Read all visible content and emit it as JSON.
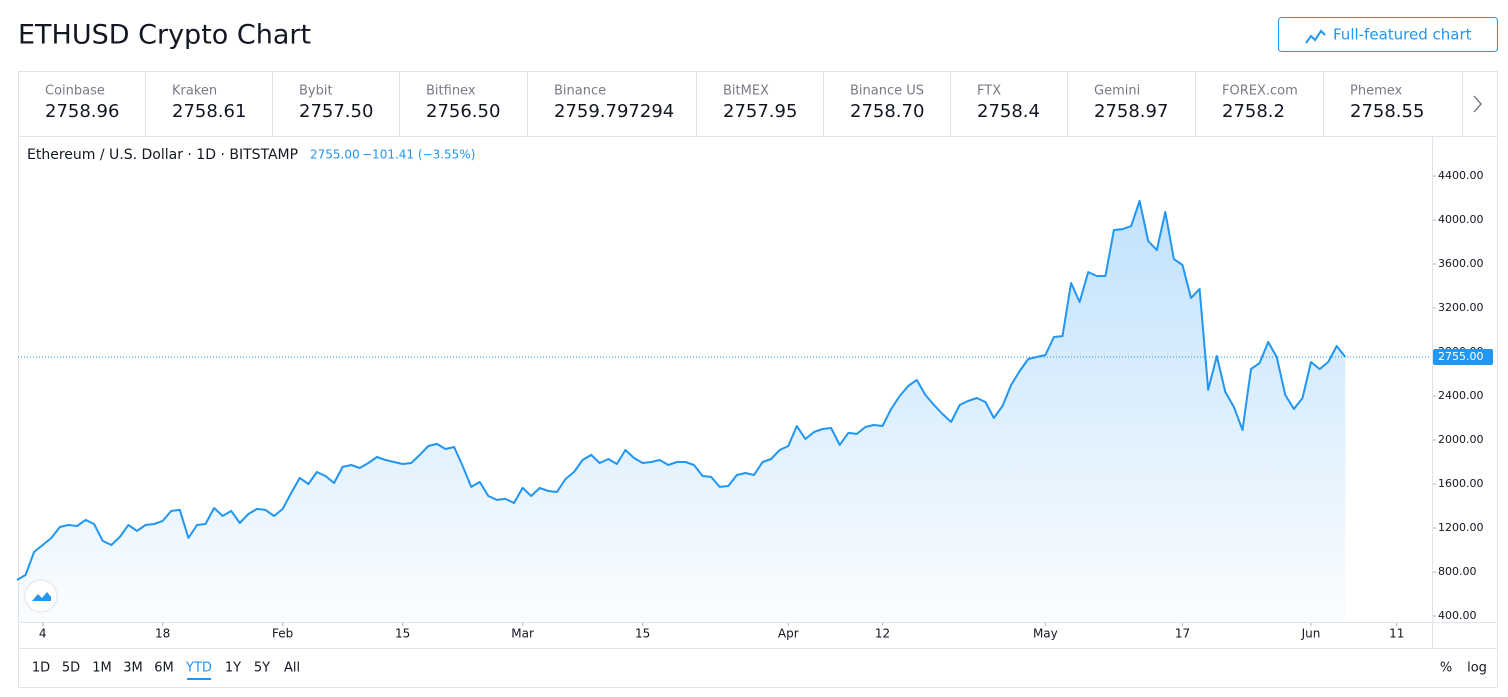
{
  "header": {
    "title": "ETHUSD Crypto Chart",
    "button": "Full-featured chart"
  },
  "exchanges": [
    {
      "name": "Coinbase",
      "price": "2758.96"
    },
    {
      "name": "Kraken",
      "price": "2758.61"
    },
    {
      "name": "Bybit",
      "price": "2757.50"
    },
    {
      "name": "Bitfinex",
      "price": "2756.50"
    },
    {
      "name": "Binance",
      "price": "2759.797294"
    },
    {
      "name": "BitMEX",
      "price": "2757.95"
    },
    {
      "name": "Binance US",
      "price": "2758.70"
    },
    {
      "name": "FTX",
      "price": "2758.4"
    },
    {
      "name": "Gemini",
      "price": "2758.97"
    },
    {
      "name": "FOREX.com",
      "price": "2758.2"
    },
    {
      "name": "Phemex",
      "price": "2758.55"
    }
  ],
  "chart_data": {
    "type": "area",
    "title": "Ethereum / U.S. Dollar · 1D · BITSTAMP",
    "last_price": "2755.00",
    "change": "−101.41 (−3.55%)",
    "color": "#2196f3",
    "values": [
      727,
      773,
      982,
      1045,
      1109,
      1209,
      1227,
      1218,
      1273,
      1236,
      1082,
      1045,
      1118,
      1227,
      1173,
      1227,
      1236,
      1264,
      1355,
      1364,
      1109,
      1227,
      1236,
      1382,
      1309,
      1355,
      1245,
      1327,
      1373,
      1364,
      1309,
      1373,
      1518,
      1655,
      1600,
      1709,
      1673,
      1609,
      1755,
      1773,
      1745,
      1791,
      1845,
      1818,
      1800,
      1782,
      1791,
      1864,
      1945,
      1964,
      1918,
      1936,
      1764,
      1573,
      1618,
      1491,
      1455,
      1464,
      1427,
      1564,
      1491,
      1564,
      1536,
      1527,
      1645,
      1709,
      1818,
      1864,
      1791,
      1827,
      1782,
      1909,
      1836,
      1791,
      1800,
      1818,
      1773,
      1800,
      1800,
      1773,
      1673,
      1664,
      1573,
      1582,
      1682,
      1700,
      1682,
      1800,
      1827,
      1909,
      1945,
      2127,
      2009,
      2073,
      2100,
      2109,
      1955,
      2064,
      2055,
      2118,
      2136,
      2127,
      2282,
      2400,
      2491,
      2545,
      2409,
      2318,
      2236,
      2164,
      2318,
      2355,
      2382,
      2345,
      2200,
      2309,
      2500,
      2627,
      2736,
      2755,
      2773,
      2936,
      2945,
      3427,
      3255,
      3527,
      3491,
      3491,
      3909,
      3918,
      3945,
      4173,
      3809,
      3727,
      4073,
      3645,
      3591,
      3291,
      3373,
      2455,
      2764,
      2436,
      2300,
      2091,
      2645,
      2700,
      2891,
      2755,
      2409,
      2282,
      2382,
      2709,
      2645,
      2709,
      2855,
      2755
    ],
    "last_value": {
      "value": 2755,
      "label": "2755.00"
    },
    "xlim": [
      0,
      165
    ],
    "xticks": [
      {
        "value": 3,
        "label": "4"
      },
      {
        "value": 17,
        "label": "18"
      },
      {
        "value": 31,
        "label": "Feb"
      },
      {
        "value": 45,
        "label": "15"
      },
      {
        "value": 59,
        "label": "Mar"
      },
      {
        "value": 73,
        "label": "15"
      },
      {
        "value": 90,
        "label": "Apr"
      },
      {
        "value": 101,
        "label": "12"
      },
      {
        "value": 120,
        "label": "May"
      },
      {
        "value": 136,
        "label": "17"
      },
      {
        "value": 151,
        "label": "Jun"
      },
      {
        "value": 161,
        "label": "11"
      }
    ],
    "ylim": [
      345,
      4755
    ],
    "yticks": [
      {
        "value": 400,
        "label": "400.00"
      },
      {
        "value": 800,
        "label": "800.00"
      },
      {
        "value": 1200,
        "label": "1200.00"
      },
      {
        "value": 1600,
        "label": "1600.00"
      },
      {
        "value": 2000,
        "label": "2000.00"
      },
      {
        "value": 2400,
        "label": "2400.00"
      },
      {
        "value": 2800,
        "label": "2800.00"
      },
      {
        "value": 3200,
        "label": "3200.00"
      },
      {
        "value": 3600,
        "label": "3600.00"
      },
      {
        "value": 4000,
        "label": "4000.00"
      },
      {
        "value": 4400,
        "label": "4400.00"
      }
    ]
  },
  "timeframes": {
    "items": [
      "1D",
      "5D",
      "1M",
      "3M",
      "6M",
      "YTD",
      "1Y",
      "5Y",
      "All"
    ],
    "active": "YTD"
  },
  "scale_buttons": [
    "%",
    "log"
  ]
}
